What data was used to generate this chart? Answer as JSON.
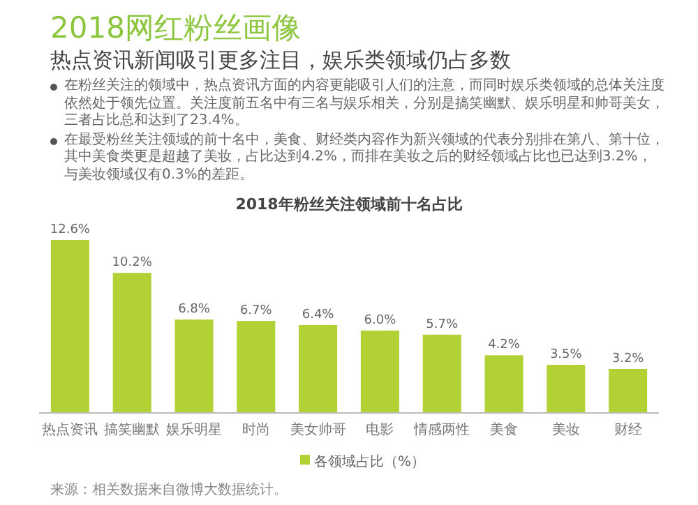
{
  "chart_data": {
    "type": "bar",
    "title": "2018网红粉丝画像",
    "subtitle": "热点资讯新闻吸引更多注目，娱乐类领域仍占多数",
    "annotations": [
      "在粉丝关注的领域中，热点资讯方面的内容更能吸引人们的注意，而同时娱乐类领域的总体关注度依然处于领先位置。关注度前五名中有三名与娱乐相关，分别是搞笑幽默、娱乐明星和帅哥美女，三者占比总和达到了23.4%。",
      "在最受粉丝关注领域的前十名中，美食、财经类内容作为新兴领域的代表分别排在第八、第十位，其中美食类更是超越了美妆，占比达到4.2%，而排在美妆之后的财经领域占比也已达到3.2%，与美妆领域仅有0.3%的差距。",
      "2018年粉丝关注领域前十名占比",
      "来源：相关数据来自微博大数据统计。"
    ],
    "categories": [
      "热点资讯",
      "搞笑幽默",
      "娱乐明星",
      "时尚",
      "美女帅哥",
      "电影",
      "情感两性",
      "美食",
      "美妆",
      "财经"
    ],
    "series": [
      {
        "name": "各领域占比（%）",
        "color": "#b1d135",
        "values": [
          12.6,
          10.2,
          6.8,
          6.7,
          6.4,
          6.0,
          5.7,
          4.2,
          3.5,
          3.2
        ],
        "value_labels": [
          "12.6%",
          "10.2%",
          "6.8%",
          "6.7%",
          "6.4%",
          "6.0%",
          "5.7%",
          "4.2%",
          "3.5%",
          "3.2%"
        ]
      }
    ],
    "legend": "bottom"
  }
}
